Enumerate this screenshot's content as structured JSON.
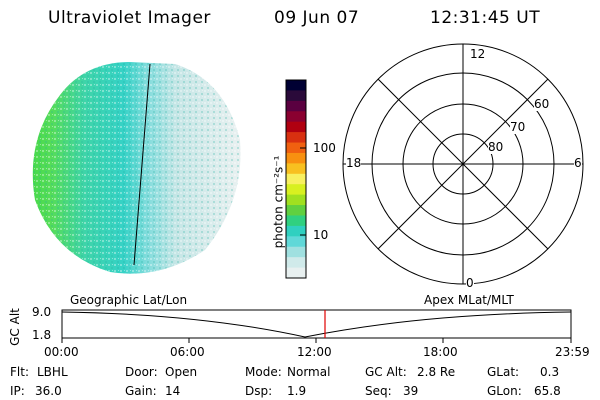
{
  "header": {
    "title": "Ultraviolet Imager",
    "date": "09 Jun 07",
    "time": "12:31:45 UT"
  },
  "colorbar": {
    "unit_label": "photon cm⁻²s⁻¹",
    "ticks": [
      "100",
      "10"
    ],
    "colors": [
      "#000033",
      "#2a0a3a",
      "#5a0040",
      "#8a0030",
      "#b00010",
      "#d83010",
      "#f06010",
      "#f89010",
      "#f8c020",
      "#f8f060",
      "#d8f020",
      "#a0e020",
      "#60d040",
      "#30d080",
      "#30d0c0",
      "#60d8d8",
      "#a0e0e0",
      "#d0eaea",
      "#e8f0f0"
    ]
  },
  "image_panel": {
    "name": "auroral-image",
    "colors": {
      "bright": "#40d840",
      "mid": "#30d0c0",
      "low": "#90e0e0",
      "faint": "#e6ecec"
    }
  },
  "polar_grid": {
    "mlt_labels": {
      "top": "12",
      "left": "18",
      "right": "6",
      "bottom": "0"
    },
    "lat_labels": [
      "60",
      "70",
      "80"
    ]
  },
  "orbit_plot": {
    "left_title": "Geographic Lat/Lon",
    "right_title": "Apex MLat/MLT",
    "axis_label": "GC Alt",
    "y_ticks": [
      "9.0",
      "1.8"
    ],
    "x_ticks": [
      "00:00",
      "06:00",
      "12:00",
      "18:00",
      "23:59"
    ],
    "current_time_color": "#e00000"
  },
  "info": {
    "flt_label": "Flt:",
    "flt_value": "LBHL",
    "ip_label": "IP:",
    "ip_value": "36.0",
    "door_label": "Door:",
    "door_value": "Open",
    "gain_label": "Gain:",
    "gain_value": "14",
    "mode_label": "Mode:",
    "mode_value": "Normal",
    "dsp_label": "Dsp:",
    "dsp_value": "1.9",
    "gcalt_label": "GC Alt:",
    "gcalt_value": "2.8 Re",
    "seq_label": "Seq:",
    "seq_value": "39",
    "glat_label": "GLat:",
    "glat_value": "0.3",
    "glon_label": "GLon:",
    "glon_value": "65.8"
  }
}
